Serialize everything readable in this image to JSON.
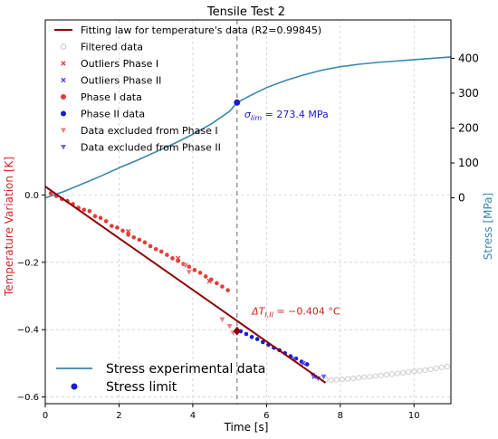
{
  "chart_data": {
    "type": "line",
    "title": "Tensile Test 2",
    "xlabel": "Time [s]",
    "ylabel_left": "Temperature Variation [K]",
    "ylabel_right": "Stress [MPa]",
    "xlim": [
      0,
      11
    ],
    "ylim_left": [
      -0.62,
      0.52
    ],
    "ylim_right": [
      -590,
      510
    ],
    "x_ticks": [
      "0",
      "2",
      "4",
      "6",
      "8",
      "10"
    ],
    "x_tick_values": [
      0,
      2,
      4,
      6,
      8,
      10
    ],
    "y_left_ticks": [
      "0.0",
      "−0.2",
      "−0.4",
      "−0.6"
    ],
    "y_left_tick_values": [
      0,
      -0.2,
      -0.4,
      -0.6
    ],
    "y_right_ticks": [
      "0",
      "100",
      "200",
      "300",
      "400"
    ],
    "y_right_tick_values": [
      0,
      100,
      200,
      300,
      400
    ],
    "grid": true,
    "colors": {
      "fit": "#8b0000",
      "stress": "#3a86b0",
      "outlier1": "#e8413f",
      "outlier2": "#4a4ae6",
      "phase1": "#e83a3a",
      "phase2": "#1a1ad0",
      "excl1": "#e9807e",
      "excl2": "#6a6ae0",
      "filtered": "#c8c8c8",
      "limit": "#1a1ad0",
      "vline": "#808080",
      "annot_sigma": "#1a1ad0",
      "annot_dt": "#cc2020",
      "ylabel_left": "#d62728",
      "ylabel_right": "#3a86b0"
    },
    "vline_x": 5.2,
    "fit_line": {
      "x": [
        0,
        7.6
      ],
      "y": [
        0.025,
        -0.558
      ]
    },
    "stress_curve": {
      "x": [
        0,
        0.5,
        1,
        1.5,
        2,
        2.5,
        3,
        3.5,
        4,
        4.5,
        5,
        5.2,
        5.5,
        6,
        6.5,
        7,
        7.5,
        8,
        8.5,
        9,
        9.5,
        10,
        10.5,
        11
      ],
      "y": [
        0,
        18,
        40,
        62,
        86,
        108,
        132,
        156,
        182,
        212,
        248,
        273,
        290,
        316,
        336,
        352,
        366,
        376,
        383,
        388,
        392,
        396,
        400,
        404
      ]
    },
    "phase1_data": {
      "x": [
        0.15,
        0.3,
        0.45,
        0.6,
        0.75,
        0.9,
        1.05,
        1.2,
        1.35,
        1.5,
        1.65,
        1.8,
        1.95,
        2.1,
        2.25,
        2.4,
        2.55,
        2.7,
        2.85,
        3.0,
        3.15,
        3.3,
        3.45,
        3.6,
        3.75,
        3.9,
        4.05,
        4.2,
        4.35,
        4.5,
        4.65,
        4.8,
        4.95
      ],
      "y": [
        0.005,
        -0.003,
        -0.012,
        -0.018,
        -0.027,
        -0.038,
        -0.044,
        -0.048,
        -0.063,
        -0.068,
        -0.078,
        -0.092,
        -0.097,
        -0.106,
        -0.118,
        -0.126,
        -0.133,
        -0.141,
        -0.152,
        -0.161,
        -0.168,
        -0.178,
        -0.188,
        -0.196,
        -0.205,
        -0.213,
        -0.223,
        -0.231,
        -0.242,
        -0.251,
        -0.262,
        -0.272,
        -0.283
      ]
    },
    "phase2_data": {
      "x": [
        5.3,
        5.45,
        5.6,
        5.75,
        5.9,
        6.05,
        6.2,
        6.35,
        6.5,
        6.65,
        6.8,
        6.95,
        7.1
      ],
      "y": [
        -0.405,
        -0.413,
        -0.422,
        -0.428,
        -0.437,
        -0.445,
        -0.454,
        -0.461,
        -0.47,
        -0.479,
        -0.486,
        -0.495,
        -0.503
      ]
    },
    "outliers_phase1": {
      "x": [
        2.25,
        3.6,
        4.45
      ],
      "y": [
        -0.108,
        -0.188,
        -0.256
      ]
    },
    "outliers_phase2": {
      "x": [
        6.75,
        7.0,
        7.3
      ],
      "y": [
        -0.486,
        -0.5,
        -0.54
      ]
    },
    "excluded_phase1": {
      "x": [
        3.8,
        3.9,
        4.8,
        5.0,
        5.1
      ],
      "y": [
        -0.21,
        -0.229,
        -0.37,
        -0.39,
        -0.41
      ]
    },
    "excluded_phase2": {
      "x": [
        7.25,
        7.4,
        7.55
      ],
      "y": [
        -0.535,
        -0.545,
        -0.54
      ]
    },
    "filtered_data": {
      "x": [
        7.6,
        7.75,
        7.9,
        8.05,
        8.2,
        8.35,
        8.5,
        8.65,
        8.8,
        8.95,
        9.1,
        9.25,
        9.4,
        9.55,
        9.7,
        9.85,
        10.0,
        10.15,
        10.3,
        10.45,
        10.6,
        10.75,
        10.9
      ],
      "y": [
        -0.548,
        -0.55,
        -0.549,
        -0.548,
        -0.546,
        -0.545,
        -0.543,
        -0.541,
        -0.54,
        -0.538,
        -0.536,
        -0.534,
        -0.532,
        -0.53,
        -0.528,
        -0.526,
        -0.524,
        -0.522,
        -0.52,
        -0.518,
        -0.515,
        -0.512,
        -0.51
      ]
    },
    "limit_points": [
      {
        "axis": "right",
        "x": 5.2,
        "y": 273.4
      },
      {
        "axis": "left",
        "x": 5.2,
        "y": -0.404
      }
    ],
    "legend_top": {
      "position": "top-left",
      "entries": [
        {
          "key": "fit",
          "label": "Fitting law for temperature's data (R2=0.99845)"
        },
        {
          "key": "filtered",
          "label": "Filtered data"
        },
        {
          "key": "outlier1",
          "label": "Outliers Phase I"
        },
        {
          "key": "outlier2",
          "label": "Outliers Phase II"
        },
        {
          "key": "phase1",
          "label": "Phase I data"
        },
        {
          "key": "phase2",
          "label": "Phase II data"
        },
        {
          "key": "excl1",
          "label": "Data excluded from Phase I"
        },
        {
          "key": "excl2",
          "label": "Data excluded from Phase II"
        }
      ]
    },
    "legend_bottom": {
      "position": "bottom-left",
      "entries": [
        {
          "key": "stress",
          "label": "Stress experimental data"
        },
        {
          "key": "limit",
          "label": "Stress limit"
        }
      ]
    },
    "annotations": [
      {
        "key": "sigma",
        "prefix": "σ",
        "sub": "lim",
        "text": " = 273.4 MPa",
        "x": 5.4,
        "y_right": 230
      },
      {
        "key": "dt",
        "prefix": "ΔT",
        "sub": "I,II",
        "text": " = −0.404 °C",
        "x": 5.6,
        "y": -0.355
      }
    ]
  }
}
